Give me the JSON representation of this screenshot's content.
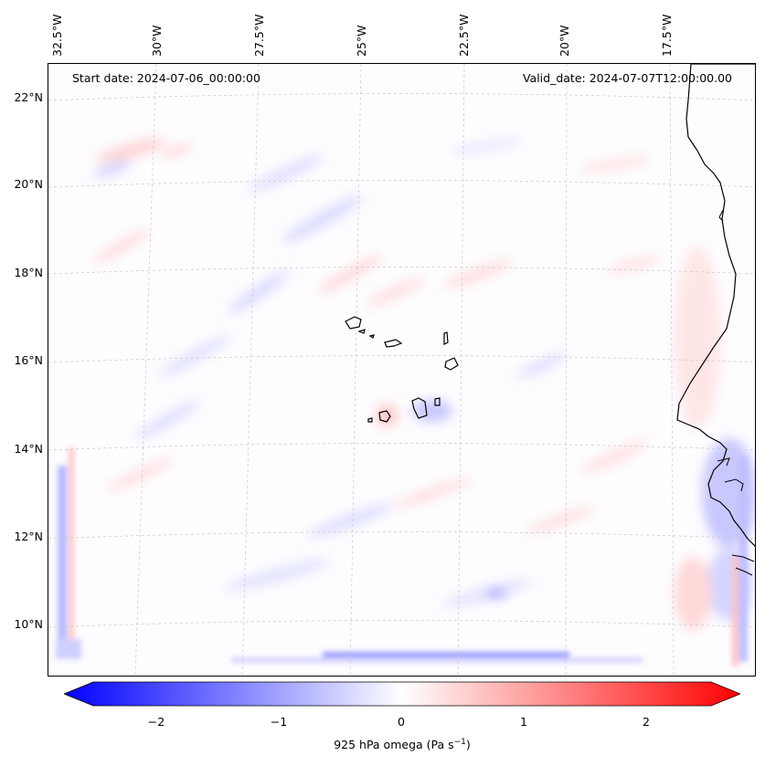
{
  "map": {
    "start_label": "Start date: 2024-07-06_00:00:00",
    "valid_label": "Valid_date: 2024-07-07T12:00:00.00",
    "longitude_labels": [
      "32.5°W",
      "30°W",
      "27.5°W",
      "25°W",
      "22.5°W",
      "20°W",
      "17.5°W"
    ],
    "latitude_labels": [
      "22°N",
      "20°N",
      "18°N",
      "16°N",
      "14°N",
      "12°N",
      "10°N"
    ],
    "colors": {
      "negative": "#0000ff",
      "positive": "#ff0000",
      "coast": "#000000"
    }
  },
  "colorbar": {
    "label": "925 hPa omega (Pa s",
    "label_sup": "−1",
    "label_end": ")",
    "ticks": [
      "−2",
      "−1",
      "0",
      "1",
      "2"
    ],
    "range": [
      -2.7,
      2.7
    ]
  }
}
